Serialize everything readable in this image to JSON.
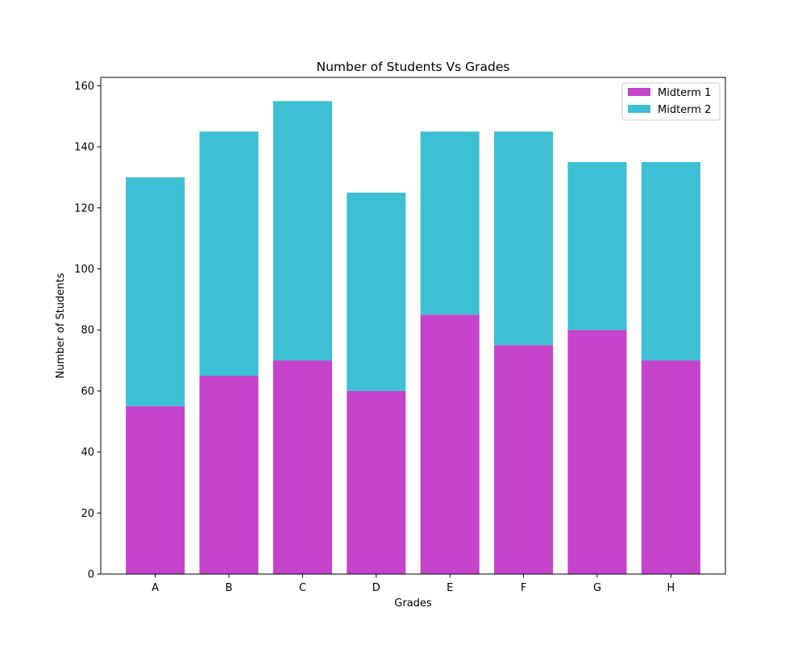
{
  "chart_data": {
    "type": "bar",
    "stacked": true,
    "title": "Number of Students Vs Grades",
    "xlabel": "Grades",
    "ylabel": "Number of Students",
    "categories": [
      "A",
      "B",
      "C",
      "D",
      "E",
      "F",
      "G",
      "H"
    ],
    "series": [
      {
        "name": "Midterm 1",
        "color": "#c444cc",
        "values": [
          55,
          65,
          70,
          60,
          85,
          75,
          80,
          70
        ]
      },
      {
        "name": "Midterm 2",
        "color": "#3ec0d4",
        "values": [
          75,
          80,
          85,
          65,
          60,
          70,
          55,
          65
        ]
      }
    ],
    "ylim": [
      0,
      162.75
    ],
    "yticks": [
      0,
      20,
      40,
      60,
      80,
      100,
      120,
      140,
      160
    ],
    "grid": false,
    "legend_position": "top-right"
  }
}
